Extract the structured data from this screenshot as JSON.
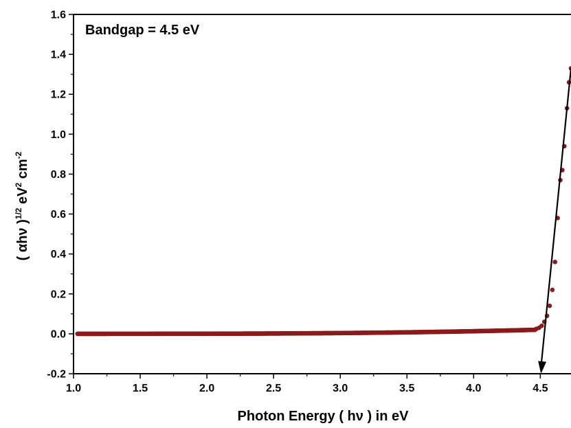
{
  "chart_data": {
    "type": "scatter",
    "annotation": "Bandgap = 4.5 eV",
    "xlabel": "Photon Energy ( hν ) in eV",
    "ylabel": {
      "base": "( αhν )",
      "exp1": "1/2",
      "unit1": " eV",
      "exp2": "2",
      "unit2": " cm",
      "exp3": "-2"
    },
    "xlim": [
      1.0,
      4.73
    ],
    "ylim": [
      -0.2,
      1.6
    ],
    "x_ticks": [
      "1.0",
      "1.5",
      "2.0",
      "2.5",
      "3.0",
      "3.5",
      "4.0",
      "4.5"
    ],
    "y_ticks": [
      "-0.2",
      "0.0",
      "0.2",
      "0.4",
      "0.6",
      "0.8",
      "1.0",
      "1.2",
      "1.4",
      "1.6"
    ],
    "grid": false,
    "series": [
      {
        "color": "#8b1a1a",
        "baseline": {
          "x_start": 1.03,
          "x_end": 4.46,
          "y_start": 0.0,
          "y_end": 0.02
        },
        "x": [
          4.47,
          4.49,
          4.51,
          4.53,
          4.55,
          4.57,
          4.59,
          4.61,
          4.63,
          4.65,
          4.665,
          4.68,
          4.7,
          4.715,
          4.73
        ],
        "y": [
          0.025,
          0.03,
          0.04,
          0.06,
          0.09,
          0.14,
          0.22,
          0.36,
          0.58,
          0.77,
          0.82,
          0.94,
          1.13,
          1.26,
          1.33
        ]
      }
    ],
    "fit_line": {
      "x": [
        4.505,
        4.73
      ],
      "y": [
        -0.2,
        1.33
      ],
      "color": "#000000"
    }
  }
}
